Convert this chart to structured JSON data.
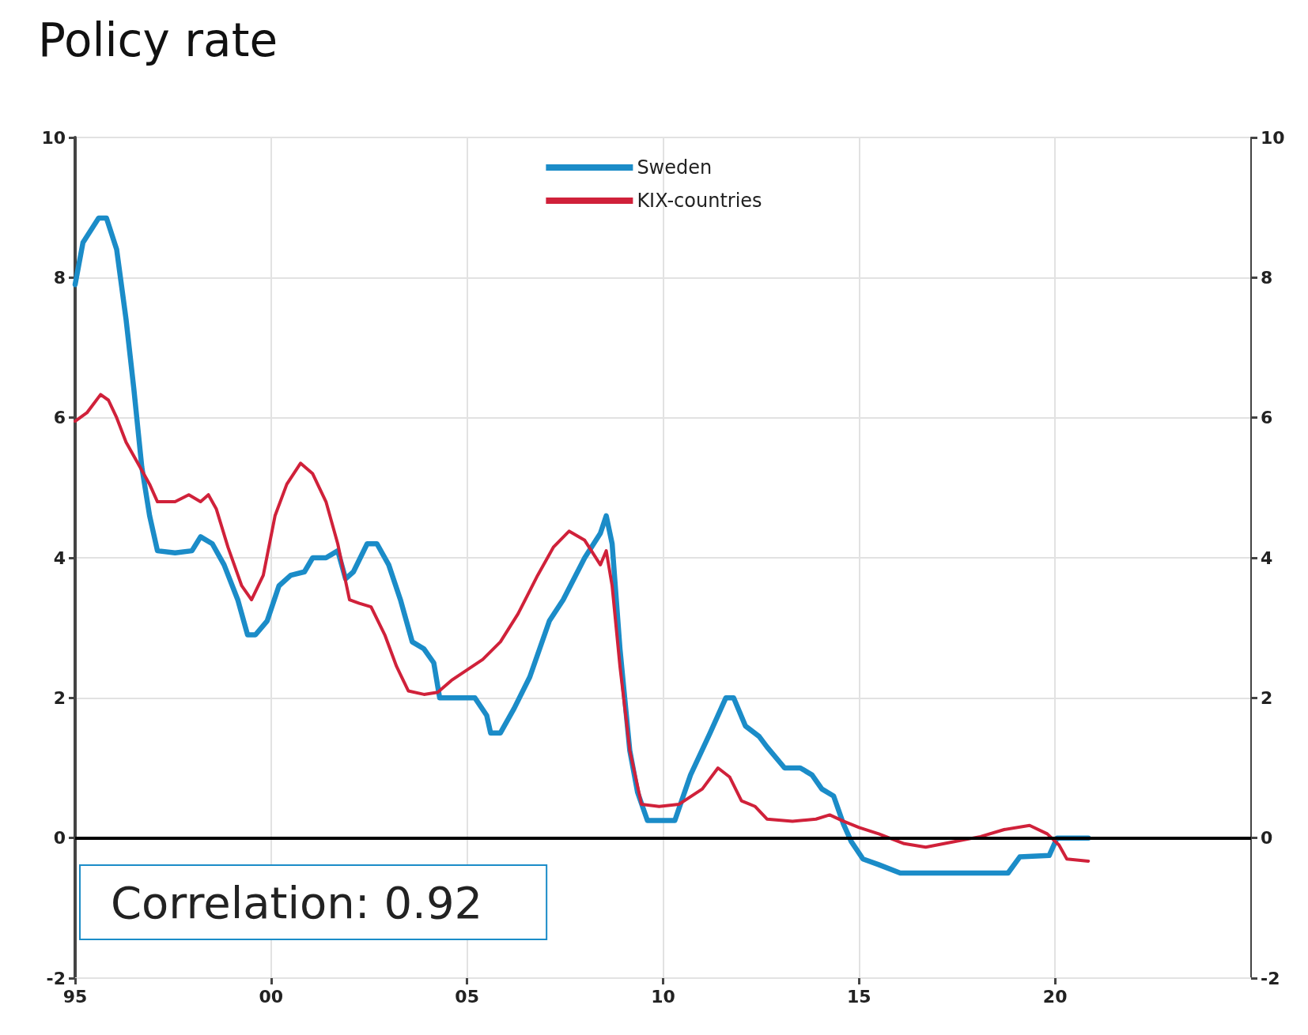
{
  "chart_data": {
    "type": "line",
    "title": "Policy rate",
    "xlim": [
      1995,
      2025
    ],
    "xticks": [
      {
        "value": 1995,
        "label": "95"
      },
      {
        "value": 2000,
        "label": "00"
      },
      {
        "value": 2005,
        "label": "05"
      },
      {
        "value": 2010,
        "label": "10"
      },
      {
        "value": 2015,
        "label": "15"
      },
      {
        "value": 2020,
        "label": "20"
      }
    ],
    "ylim": [
      -2,
      10
    ],
    "yticks": [
      -2,
      0,
      2,
      4,
      6,
      8,
      10
    ],
    "y2lim": [
      -2,
      10
    ],
    "y2ticks": [
      -2,
      0,
      2,
      4,
      6,
      8,
      10
    ],
    "grid": true,
    "legend": "top center",
    "marker": "none",
    "line_style": "solid",
    "ref_lines": [
      {
        "axis": "y",
        "value": 0,
        "color": "#000000"
      }
    ],
    "annotations": [
      "Correlation: 0.92"
    ],
    "series": [
      {
        "name": "Sweden",
        "color": "#1b8cc8",
        "x": [
          1995.0,
          1995.2,
          1995.6,
          1995.8,
          1996.06,
          1996.3,
          1996.5,
          1996.7,
          1996.9,
          1997.1,
          1997.55,
          1997.98,
          1998.2,
          1998.5,
          1998.8,
          1999.15,
          1999.4,
          1999.6,
          1999.9,
          2000.2,
          2000.5,
          2000.85,
          2001.06,
          2001.4,
          2001.7,
          2001.9,
          2002.1,
          2002.45,
          2002.7,
          2003.0,
          2003.3,
          2003.6,
          2003.9,
          2004.15,
          2004.3,
          2004.7,
          2005.2,
          2005.5,
          2005.6,
          2005.85,
          2006.2,
          2006.6,
          2007.1,
          2007.45,
          2008.0,
          2008.4,
          2008.55,
          2008.7,
          2008.9,
          2009.15,
          2009.35,
          2009.6,
          2009.9,
          2010.3,
          2010.7,
          2011.2,
          2011.6,
          2011.8,
          2012.1,
          2012.45,
          2012.65,
          2013.1,
          2013.5,
          2013.8,
          2014.05,
          2014.35,
          2014.6,
          2014.8,
          2015.1,
          2015.5,
          2016.05,
          2017.1,
          2018.0,
          2018.8,
          2019.1,
          2019.85,
          2020.05,
          2020.85
        ],
        "values": [
          7.9,
          8.5,
          8.85,
          8.85,
          8.4,
          7.4,
          6.4,
          5.3,
          4.6,
          4.1,
          4.07,
          4.1,
          4.3,
          4.2,
          3.9,
          3.4,
          2.9,
          2.9,
          3.1,
          3.6,
          3.75,
          3.8,
          4.0,
          4.0,
          4.1,
          3.7,
          3.8,
          4.2,
          4.2,
          3.9,
          3.4,
          2.8,
          2.7,
          2.5,
          2.0,
          2.0,
          2.0,
          1.75,
          1.5,
          1.5,
          1.85,
          2.3,
          3.1,
          3.4,
          4.0,
          4.35,
          4.6,
          4.2,
          2.7,
          1.25,
          0.65,
          0.25,
          0.25,
          0.25,
          0.9,
          1.5,
          2.0,
          2.0,
          1.6,
          1.45,
          1.3,
          1.0,
          1.0,
          0.9,
          0.7,
          0.6,
          0.2,
          -0.05,
          -0.3,
          -0.38,
          -0.5,
          -0.5,
          -0.5,
          -0.5,
          -0.27,
          -0.25,
          0,
          0
        ]
      },
      {
        "name": "KIX-countries",
        "color": "#d0213a",
        "x": [
          1995.0,
          1995.3,
          1995.65,
          1995.85,
          1996.06,
          1996.3,
          1996.6,
          1996.9,
          1997.1,
          1997.55,
          1997.9,
          1998.2,
          1998.4,
          1998.6,
          1998.9,
          1999.25,
          1999.5,
          1999.8,
          2000.1,
          2000.4,
          2000.75,
          2001.06,
          2001.4,
          2001.7,
          2002.0,
          2002.25,
          2002.55,
          2002.9,
          2003.2,
          2003.5,
          2003.9,
          2004.25,
          2004.6,
          2005.0,
          2005.4,
          2005.85,
          2006.3,
          2006.8,
          2007.2,
          2007.6,
          2008.0,
          2008.4,
          2008.55,
          2008.7,
          2008.9,
          2009.15,
          2009.45,
          2009.9,
          2010.4,
          2011.0,
          2011.4,
          2011.7,
          2012.0,
          2012.35,
          2012.65,
          2013.3,
          2013.9,
          2014.25,
          2014.6,
          2015.0,
          2015.5,
          2016.15,
          2016.7,
          2017.35,
          2018.1,
          2018.7,
          2019.35,
          2019.8,
          2020.1,
          2020.3,
          2020.85
        ],
        "values": [
          5.95,
          6.07,
          6.33,
          6.25,
          6.0,
          5.65,
          5.35,
          5.05,
          4.8,
          4.8,
          4.9,
          4.8,
          4.9,
          4.7,
          4.15,
          3.6,
          3.4,
          3.75,
          4.6,
          5.05,
          5.35,
          5.2,
          4.8,
          4.2,
          3.4,
          3.35,
          3.3,
          2.9,
          2.45,
          2.1,
          2.05,
          2.08,
          2.25,
          2.4,
          2.55,
          2.8,
          3.2,
          3.75,
          4.15,
          4.38,
          4.25,
          3.9,
          4.1,
          3.6,
          2.45,
          1.25,
          0.48,
          0.45,
          0.48,
          0.7,
          1.0,
          0.87,
          0.53,
          0.45,
          0.27,
          0.24,
          0.27,
          0.33,
          0.24,
          0.15,
          0.06,
          -0.08,
          -0.13,
          -0.06,
          0.02,
          0.12,
          0.18,
          0.06,
          -0.1,
          -0.3,
          -0.33
        ]
      }
    ]
  }
}
